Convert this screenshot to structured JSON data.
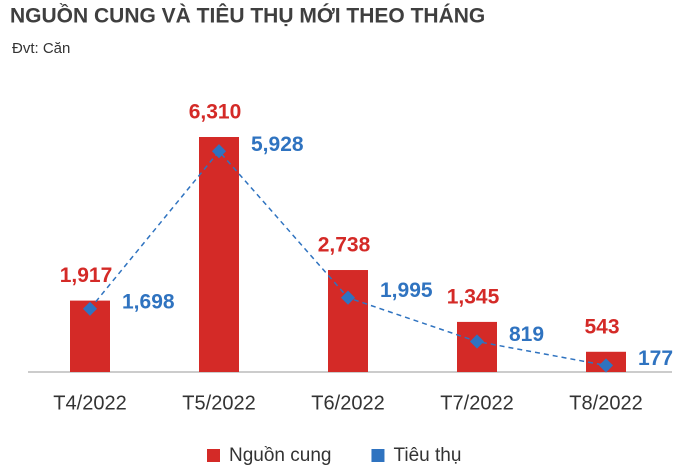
{
  "chart_data": {
    "type": "bar",
    "title": "NGUỒN CUNG VÀ TIÊU THỤ MỚI THEO THÁNG",
    "subtitle": "Đvt: Căn",
    "categories": [
      "T4/2022",
      "T5/2022",
      "T6/2022",
      "T7/2022",
      "T8/2022"
    ],
    "series": [
      {
        "name": "Nguồn cung",
        "type": "bar",
        "color": "#d42a27",
        "values": [
          1917,
          6310,
          2738,
          1345,
          543
        ],
        "value_labels": [
          "1,917",
          "6,310",
          "2,738",
          "1,345",
          "543"
        ]
      },
      {
        "name": "Tiêu thụ",
        "type": "line",
        "color": "#2f73c0",
        "values": [
          1698,
          5928,
          1995,
          819,
          177
        ],
        "value_labels": [
          "1,698",
          "5,928",
          "1,995",
          "819",
          "177"
        ]
      }
    ],
    "legend": "bottom"
  }
}
